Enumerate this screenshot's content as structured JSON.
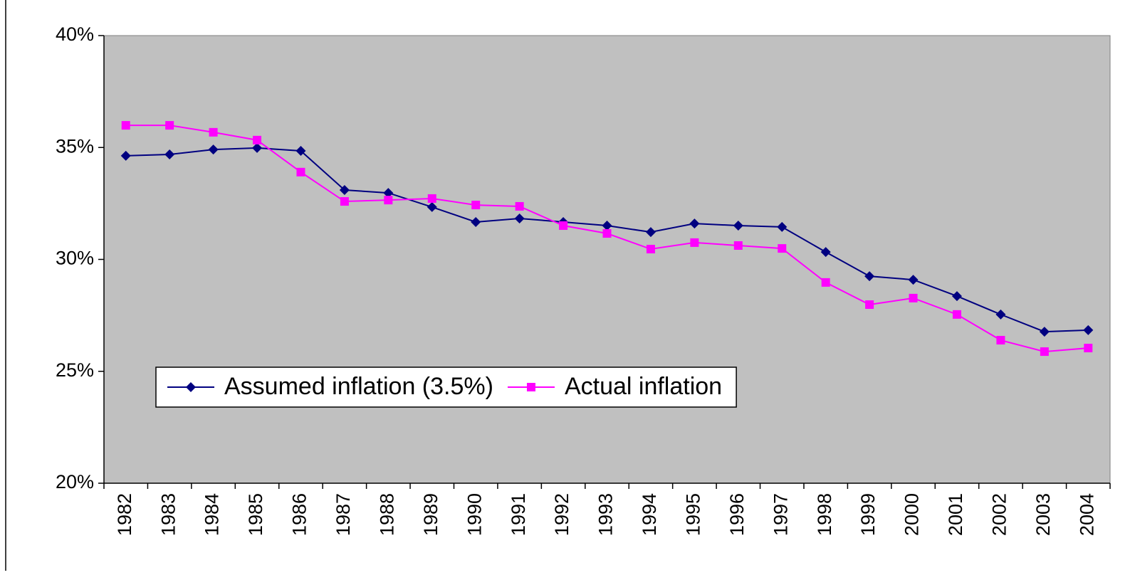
{
  "chart_data": {
    "type": "line",
    "categories": [
      "1982",
      "1983",
      "1984",
      "1985",
      "1986",
      "1987",
      "1988",
      "1989",
      "1990",
      "1991",
      "1992",
      "1993",
      "1994",
      "1995",
      "1996",
      "1997",
      "1998",
      "1999",
      "2000",
      "2001",
      "2002",
      "2003",
      "2004"
    ],
    "series": [
      {
        "name": "Assumed inflation (3.5%)",
        "color": "#000080",
        "marker": "diamond",
        "values": [
          34.63,
          34.69,
          34.91,
          34.98,
          34.85,
          33.1,
          32.97,
          32.34,
          31.67,
          31.83,
          31.67,
          31.51,
          31.22,
          31.6,
          31.51,
          31.45,
          30.33,
          29.25,
          29.09,
          28.36,
          27.54,
          26.77,
          26.84
        ]
      },
      {
        "name": "Actual inflation",
        "color": "#ff00ff",
        "marker": "square",
        "values": [
          35.99,
          35.99,
          35.68,
          35.33,
          33.9,
          32.59,
          32.65,
          32.72,
          32.43,
          32.37,
          31.51,
          31.16,
          30.46,
          30.75,
          30.62,
          30.49,
          28.97,
          27.98,
          28.27,
          27.54,
          26.39,
          25.88,
          26.04
        ]
      }
    ],
    "ylim": [
      20,
      40
    ],
    "yticks": [
      {
        "value": 20,
        "label": "20%"
      },
      {
        "value": 25,
        "label": "25%"
      },
      {
        "value": 30,
        "label": "30%"
      },
      {
        "value": 35,
        "label": "35%"
      },
      {
        "value": 40,
        "label": "40%"
      }
    ],
    "grid": false,
    "legend": "lower left",
    "plot_background": "#c0c0c0"
  }
}
